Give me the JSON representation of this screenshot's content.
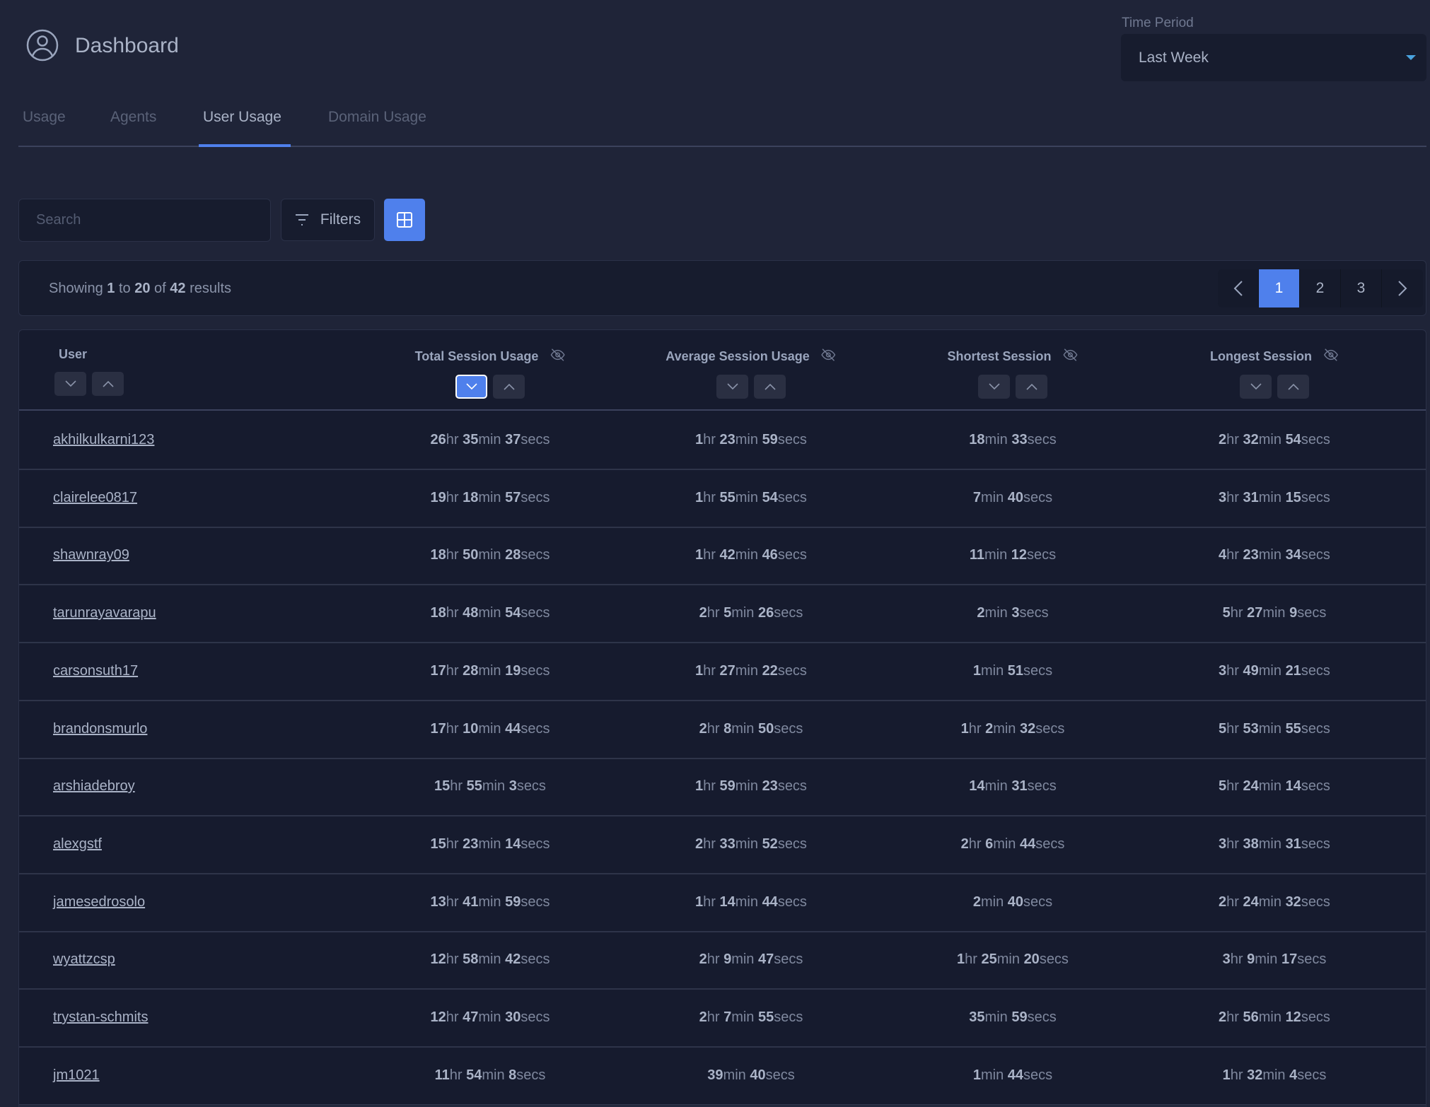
{
  "header": {
    "title": "Dashboard",
    "icon": "user-circle-icon"
  },
  "time_period": {
    "label": "Time Period",
    "value": "Last Week"
  },
  "tabs": [
    {
      "label": "Usage"
    },
    {
      "label": "Agents"
    },
    {
      "label": "User Usage",
      "active": true
    },
    {
      "label": "Domain Usage"
    }
  ],
  "toolbar": {
    "search_placeholder": "Search",
    "search_value": "",
    "filters_label": "Filters",
    "grid_icon": "grid-icon"
  },
  "results": {
    "prefix": "Showing",
    "from": "1",
    "to_word": "to",
    "to": "20",
    "of_word": "of",
    "total": "42",
    "suffix": "results"
  },
  "pagination": {
    "pages": [
      "1",
      "2",
      "3"
    ],
    "current": "1"
  },
  "colors": {
    "accent": "#4f80ec",
    "background": "#1f2438",
    "table": "#161b2e"
  },
  "table": {
    "columns": [
      {
        "label": "User",
        "hideable": false
      },
      {
        "label": "Total Session Usage",
        "hideable": true,
        "sorted": "desc"
      },
      {
        "label": "Average Session Usage",
        "hideable": true
      },
      {
        "label": "Shortest Session",
        "hideable": true
      },
      {
        "label": "Longest Session",
        "hideable": true
      }
    ],
    "rows": [
      [
        "akhilkulkarni123",
        "26hr 35min 37secs",
        "1hr 23min 59secs",
        "18min 33secs",
        "2hr 32min 54secs"
      ],
      [
        "clairelee0817",
        "19hr 18min 57secs",
        "1hr 55min 54secs",
        "7min 40secs",
        "3hr 31min 15secs"
      ],
      [
        "shawnray09",
        "18hr 50min 28secs",
        "1hr 42min 46secs",
        "11min 12secs",
        "4hr 23min 34secs"
      ],
      [
        "tarunrayavarapu",
        "18hr 48min 54secs",
        "2hr 5min 26secs",
        "2min 3secs",
        "5hr 27min 9secs"
      ],
      [
        "carsonsuth17",
        "17hr 28min 19secs",
        "1hr 27min 22secs",
        "1min 51secs",
        "3hr 49min 21secs"
      ],
      [
        "brandonsmurlo",
        "17hr 10min 44secs",
        "2hr 8min 50secs",
        "1hr 2min 32secs",
        "5hr 53min 55secs"
      ],
      [
        "arshiadebroy",
        "15hr 55min 3secs",
        "1hr 59min 23secs",
        "14min 31secs",
        "5hr 24min 14secs"
      ],
      [
        "alexgstf",
        "15hr 23min 14secs",
        "2hr 33min 52secs",
        "2hr 6min 44secs",
        "3hr 38min 31secs"
      ],
      [
        "jamesedrosolo",
        "13hr 41min 59secs",
        "1hr 14min 44secs",
        "2min 40secs",
        "2hr 24min 32secs"
      ],
      [
        "wyattzcsp",
        "12hr 58min 42secs",
        "2hr 9min 47secs",
        "1hr 25min 20secs",
        "3hr 9min 17secs"
      ],
      [
        "trystan-schmits",
        "12hr 47min 30secs",
        "2hr 7min 55secs",
        "35min 59secs",
        "2hr 56min 12secs"
      ],
      [
        "jm1021",
        "11hr 54min 8secs",
        "39min 40secs",
        "1min 44secs",
        "1hr 32min 4secs"
      ]
    ]
  }
}
